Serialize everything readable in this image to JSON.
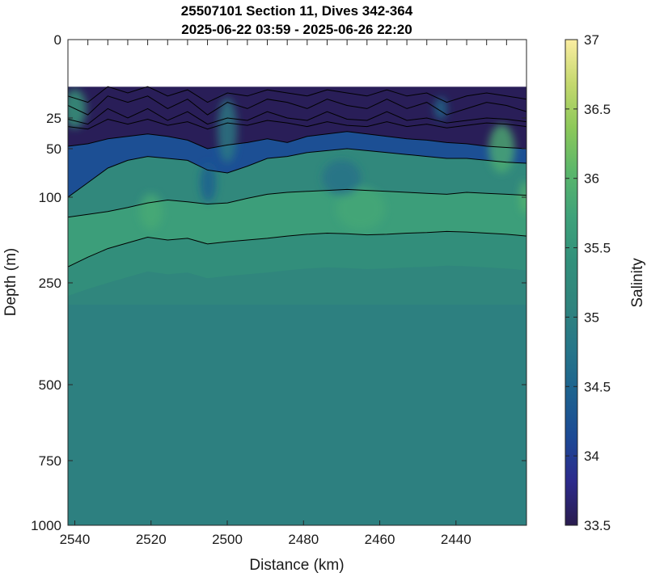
{
  "chart_data": {
    "type": "heatmap",
    "title": "25507101 Section 11, Dives 342-364",
    "subtitle": "2025-06-22 03:59 - 2025-06-26 22:20",
    "xlabel": "Distance (km)",
    "ylabel": "Depth (m)",
    "colorbar_label": "Salinity",
    "x_reversed": true,
    "xlim": [
      2541.8,
      2421.5
    ],
    "x_ticks": [
      2540,
      2520,
      2500,
      2480,
      2460,
      2440
    ],
    "y_ticks": [
      0,
      25,
      50,
      100,
      250,
      500,
      750,
      1000
    ],
    "ylim": [
      0,
      1000
    ],
    "y_scale": "nonlinear (stretched near surface)",
    "clim": [
      33.5,
      37
    ],
    "colorbar_ticks": [
      33.5,
      34,
      34.5,
      35,
      35.5,
      36,
      36.5,
      37
    ],
    "colormap": "haline",
    "colormap_colors": [
      "#291c4e",
      "#2c2a8c",
      "#1c4a95",
      "#1d628f",
      "#267689",
      "#30847d",
      "#32907b",
      "#3fa27a",
      "#5ab66b",
      "#8cc85a",
      "#c4d86e",
      "#fbeda1"
    ],
    "no_data_top_depth": 15,
    "contours": [
      {
        "level": "shallow",
        "depths": [
          18,
          20,
          15,
          17,
          15,
          18,
          16,
          20,
          17,
          18,
          16,
          17,
          18,
          16,
          17,
          18,
          16,
          18,
          17,
          20,
          18,
          17,
          18,
          19
        ]
      },
      {
        "level": "shallow",
        "depths": [
          21,
          24,
          18,
          20,
          18,
          22,
          19,
          24,
          20,
          22,
          19,
          20,
          22,
          19,
          21,
          22,
          19,
          22,
          20,
          24,
          22,
          20,
          21,
          23
        ]
      },
      {
        "level": "shallow",
        "depths": [
          26,
          30,
          22,
          25,
          22,
          27,
          23,
          30,
          25,
          27,
          23,
          25,
          27,
          23,
          26,
          27,
          23,
          27,
          25,
          29,
          27,
          25,
          26,
          28
        ]
      },
      {
        "level": "shallow",
        "depths": [
          32,
          34,
          26,
          30,
          26,
          31,
          28,
          34,
          29,
          31,
          27,
          29,
          32,
          28,
          31,
          32,
          28,
          32,
          30,
          33,
          31,
          29,
          30,
          32
        ]
      },
      {
        "level": "mid",
        "depths": [
          48,
          46,
          42,
          40,
          38,
          40,
          43,
          50,
          47,
          45,
          42,
          45,
          40,
          38,
          36,
          38,
          40,
          42,
          43,
          45,
          46,
          48,
          49,
          50
        ]
      },
      {
        "level": "mid",
        "depths": [
          100,
          85,
          70,
          62,
          58,
          60,
          62,
          72,
          75,
          68,
          60,
          58,
          54,
          52,
          50,
          52,
          54,
          56,
          58,
          60,
          60,
          62,
          64,
          65
        ]
      },
      {
        "level": "deep",
        "depths": [
          135,
          130,
          125,
          118,
          110,
          105,
          108,
          112,
          110,
          102,
          97,
          95,
          94,
          93,
          92,
          93,
          94,
          95,
          96,
          97,
          95,
          96,
          97,
          98
        ]
      },
      {
        "level": "deeper",
        "depths": [
          222,
          205,
          190,
          180,
          170,
          175,
          172,
          182,
          178,
          175,
          172,
          168,
          165,
          163,
          164,
          166,
          165,
          163,
          162,
          160,
          161,
          163,
          165,
          168
        ]
      }
    ]
  }
}
